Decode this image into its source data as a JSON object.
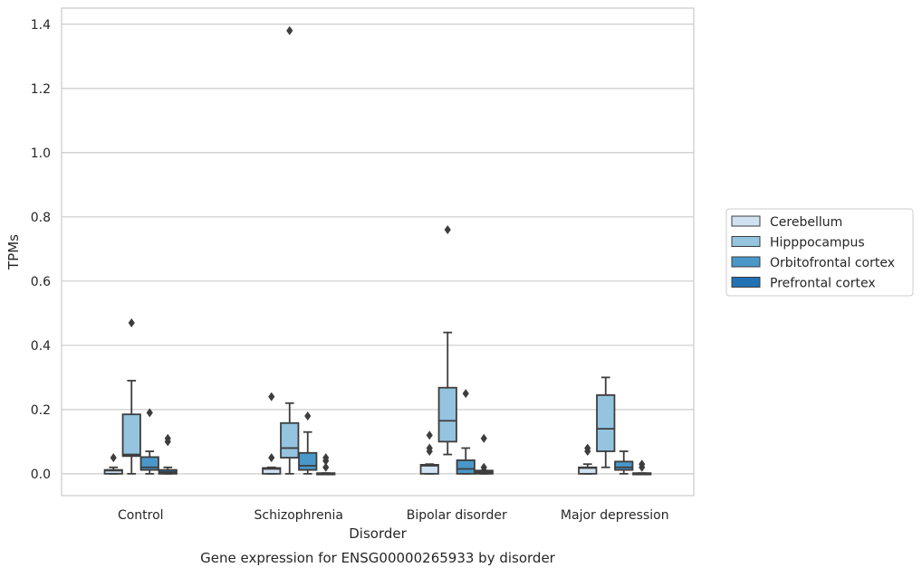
{
  "chart_data": {
    "type": "boxplot",
    "caption": "Gene expression for ENSG00000265933 by disorder",
    "xlabel": "Disorder",
    "ylabel": "TPMs",
    "ylim": [
      -0.068,
      1.45
    ],
    "yticks": [
      0.0,
      0.2,
      0.4,
      0.6,
      0.8,
      1.0,
      1.2,
      1.4
    ],
    "ytick_labels": [
      "0.0",
      "0.2",
      "0.4",
      "0.6",
      "0.8",
      "1.0",
      "1.2",
      "1.4"
    ],
    "grid": "horizontal",
    "legend_placement": "right-center",
    "categories": [
      "Control",
      "Schizophrenia",
      "Bipolar disorder",
      "Major depression"
    ],
    "series": [
      {
        "name": "Cerebellum",
        "color": "#d0e1f2",
        "boxes": [
          {
            "whislo": 0.0,
            "q1": 0.0,
            "med": 0.01,
            "q3": 0.012,
            "whishi": 0.02,
            "fliers": [
              0.05
            ]
          },
          {
            "whislo": 0.0,
            "q1": 0.0,
            "med": 0.015,
            "q3": 0.018,
            "whishi": 0.02,
            "fliers": [
              0.05,
              0.24
            ]
          },
          {
            "whislo": 0.0,
            "q1": 0.0,
            "med": 0.025,
            "q3": 0.028,
            "whishi": 0.03,
            "fliers": [
              0.07,
              0.08,
              0.12
            ]
          },
          {
            "whislo": 0.0,
            "q1": 0.0,
            "med": 0.018,
            "q3": 0.02,
            "whishi": 0.03,
            "fliers": [
              0.07,
              0.08
            ]
          }
        ]
      },
      {
        "name": "Hipppocampus",
        "color": "#94c4df",
        "boxes": [
          {
            "whislo": 0.0,
            "q1": 0.055,
            "med": 0.06,
            "q3": 0.185,
            "whishi": 0.29,
            "fliers": [
              0.47
            ]
          },
          {
            "whislo": 0.0,
            "q1": 0.05,
            "med": 0.08,
            "q3": 0.158,
            "whishi": 0.22,
            "fliers": [
              1.38
            ]
          },
          {
            "whislo": 0.06,
            "q1": 0.1,
            "med": 0.165,
            "q3": 0.268,
            "whishi": 0.44,
            "fliers": [
              0.76
            ]
          },
          {
            "whislo": 0.02,
            "q1": 0.07,
            "med": 0.14,
            "q3": 0.245,
            "whishi": 0.3,
            "fliers": []
          }
        ]
      },
      {
        "name": "Orbitofrontal cortex",
        "color": "#4a98c9",
        "boxes": [
          {
            "whislo": 0.0,
            "q1": 0.012,
            "med": 0.02,
            "q3": 0.052,
            "whishi": 0.07,
            "fliers": [
              0.19
            ]
          },
          {
            "whislo": 0.0,
            "q1": 0.012,
            "med": 0.025,
            "q3": 0.065,
            "whishi": 0.13,
            "fliers": [
              0.18
            ]
          },
          {
            "whislo": 0.0,
            "q1": 0.0,
            "med": 0.015,
            "q3": 0.042,
            "whishi": 0.08,
            "fliers": [
              0.25
            ]
          },
          {
            "whislo": 0.0,
            "q1": 0.012,
            "med": 0.02,
            "q3": 0.038,
            "whishi": 0.07,
            "fliers": []
          }
        ]
      },
      {
        "name": "Prefrontal cortex",
        "color": "#2171b5",
        "boxes": [
          {
            "whislo": 0.0,
            "q1": 0.0,
            "med": 0.005,
            "q3": 0.012,
            "whishi": 0.02,
            "fliers": [
              0.1,
              0.11
            ]
          },
          {
            "whislo": 0.0,
            "q1": 0.0,
            "med": 0.0,
            "q3": 0.002,
            "whishi": 0.002,
            "fliers": [
              0.02,
              0.04,
              0.05
            ]
          },
          {
            "whislo": 0.0,
            "q1": 0.0,
            "med": 0.005,
            "q3": 0.01,
            "whishi": 0.01,
            "fliers": [
              0.01,
              0.02,
              0.11
            ]
          },
          {
            "whislo": 0.0,
            "q1": 0.0,
            "med": 0.0,
            "q3": 0.002,
            "whishi": 0.002,
            "fliers": [
              0.02,
              0.03
            ]
          }
        ]
      }
    ]
  }
}
